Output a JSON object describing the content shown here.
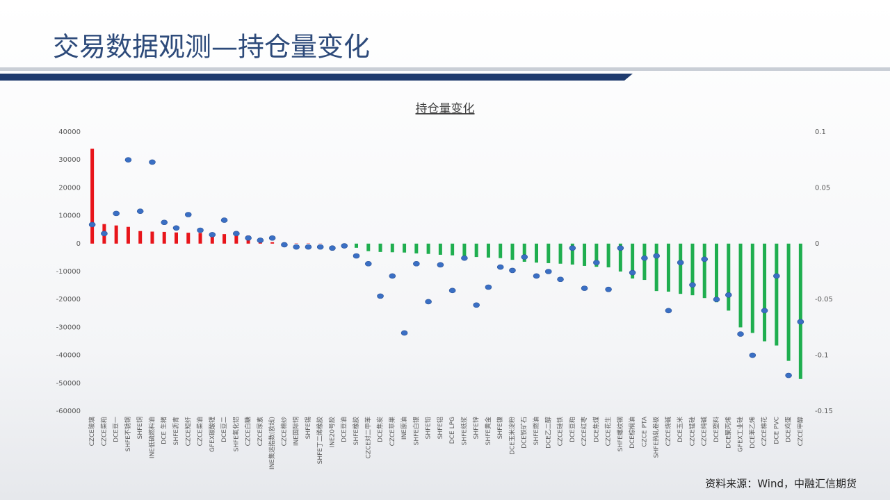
{
  "header": {
    "title": "交易数据观测—持仓量变化"
  },
  "chart_data": {
    "type": "bar_dot",
    "title": "持仓量变化",
    "categories": [
      "CZCE玻璃",
      "CZCE菜粕",
      "DCE豆一",
      "SHFE不锈钢",
      "SHFE铜",
      "INE低硫燃料油",
      "DCE 生猪",
      "SHFE沥青",
      "CZCE短纤",
      "CZCE菜油",
      "GFEX碳酸锂",
      "DCE豆二",
      "SHFE氧化铝",
      "CZCE白糖",
      "CZCE尿素",
      "INE集运指数(欧线)",
      "CZCE棉纱",
      "INE国际铜",
      "SHFE锡",
      "SHFE丁二烯橡胶",
      "INE20号胶",
      "DCE豆油",
      "SHFE橡胶",
      "CZCE对二甲苯",
      "DCE焦炭",
      "CZCE苹果",
      "INE原油",
      "SHFE白银",
      "SHFE铅",
      "SHFE铝",
      "DCE LPG",
      "SHFE纸浆",
      "SHFE锌",
      "SHFE黄金",
      "SHFE镍",
      "DCE玉米淀粉",
      "DCE铁矿石",
      "SHFE燃油",
      "DCE乙二醇",
      "CZCE硅铁",
      "DCE豆粕",
      "CZCE红枣",
      "DCE焦煤",
      "CZCE花生",
      "SHFE螺纹钢",
      "DCE棕榈油",
      "CZCE PTA",
      "SHFE热轧卷板",
      "CZCE烧碱",
      "DCE玉米",
      "CZCE锰硅",
      "CZCE纯碱",
      "DCE塑料",
      "DCE聚丙烯",
      "GFEX工业硅",
      "DCE苯乙烯",
      "CZCE棉花",
      "DCE PVC",
      "DCE鸡蛋",
      "CZCE甲醇"
    ],
    "series": [
      {
        "kind": "bar",
        "positive_color": "#e8141a",
        "negative_color": "#1fae4f",
        "values": [
          34000,
          7000,
          6500,
          6000,
          4500,
          4300,
          4200,
          4000,
          3900,
          3800,
          3600,
          3400,
          3200,
          2900,
          1500,
          500,
          200,
          100,
          100,
          50,
          0,
          -100,
          -1500,
          -2700,
          -3000,
          -3100,
          -3200,
          -3500,
          -3700,
          -4000,
          -4200,
          -4500,
          -4800,
          -5000,
          -5200,
          -5800,
          -6500,
          -6800,
          -7000,
          -7200,
          -7500,
          -8000,
          -8300,
          -8500,
          -10000,
          -12500,
          -13000,
          -17000,
          -17200,
          -18000,
          -18500,
          -19500,
          -21000,
          -24000,
          -30000,
          -32000,
          -35000,
          -36500,
          -42000,
          -48500
        ]
      },
      {
        "kind": "dot",
        "axis": "y2",
        "color": "#3a6fc4",
        "values": [
          0.017,
          0.009,
          0.027,
          0.075,
          0.029,
          0.073,
          0.019,
          0.014,
          0.026,
          0.012,
          0.008,
          0.021,
          0.009,
          0.005,
          0.003,
          0.005,
          -0.001,
          -0.003,
          -0.003,
          -0.003,
          -0.004,
          -0.002,
          -0.011,
          -0.018,
          -0.047,
          -0.029,
          -0.08,
          -0.018,
          -0.052,
          -0.019,
          -0.042,
          -0.013,
          -0.055,
          -0.039,
          -0.021,
          -0.024,
          -0.012,
          -0.029,
          -0.025,
          -0.032,
          -0.004,
          -0.04,
          -0.017,
          -0.041,
          -0.004,
          -0.026,
          -0.013,
          -0.011,
          -0.06,
          -0.017,
          -0.037,
          -0.014,
          -0.05,
          -0.046,
          -0.081,
          -0.1,
          -0.06,
          -0.029,
          -0.118,
          -0.07
        ]
      }
    ],
    "ylim": [
      -60000,
      40000
    ],
    "yticks": [
      -60000,
      -50000,
      -40000,
      -30000,
      -20000,
      -10000,
      0,
      10000,
      20000,
      30000,
      40000
    ],
    "y2lim": [
      -0.15,
      0.1
    ],
    "y2ticks": [
      -0.15,
      -0.1,
      -0.05,
      0,
      0.05,
      0.1
    ]
  },
  "footer": {
    "source": "资料来源：Wind，中融汇信期货"
  }
}
